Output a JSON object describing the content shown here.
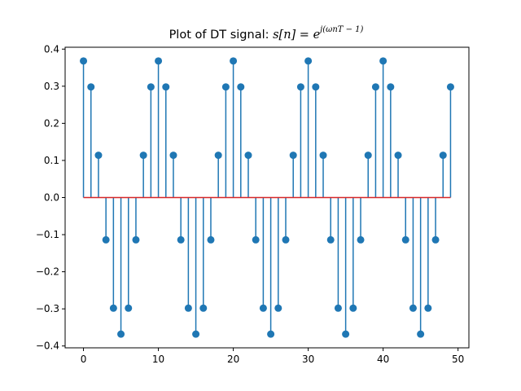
{
  "chart_data": {
    "type": "stem",
    "title": {
      "prefix": "Plot of DT signal: ",
      "formula_base": "s[n] = e",
      "formula_exponent": "j(ωnT − 1)"
    },
    "xlabel": "",
    "ylabel": "",
    "xlim": [
      -2.45,
      51.45
    ],
    "ylim": [
      -0.405,
      0.405
    ],
    "xticks": [
      0,
      10,
      20,
      30,
      40,
      50
    ],
    "yticks": [
      -0.4,
      -0.3,
      -0.2,
      -0.1,
      0.0,
      0.1,
      0.2,
      0.3,
      0.4
    ],
    "ytick_labels": [
      "−0.4",
      "−0.3",
      "−0.2",
      "−0.1",
      "0.0",
      "0.1",
      "0.2",
      "0.3",
      "0.4"
    ],
    "baseline": 0,
    "grid": false,
    "colors": {
      "stem": "#1f77b4",
      "marker": "#1f77b4",
      "baseline": "#d62728",
      "axes": "#000000"
    },
    "series": [
      {
        "x": [
          0,
          1,
          2,
          3,
          4,
          5,
          6,
          7,
          8,
          9,
          10,
          11,
          12,
          13,
          14,
          15,
          16,
          17,
          18,
          19,
          20,
          21,
          22,
          23,
          24,
          25,
          26,
          27,
          28,
          29,
          30,
          31,
          32,
          33,
          34,
          35,
          36,
          37,
          38,
          39,
          40,
          41,
          42,
          43,
          44,
          45,
          46,
          47,
          48,
          49
        ],
        "y": [
          0.368,
          0.298,
          0.114,
          -0.114,
          -0.298,
          -0.368,
          -0.298,
          -0.114,
          0.114,
          0.298,
          0.368,
          0.298,
          0.114,
          -0.114,
          -0.298,
          -0.368,
          -0.298,
          -0.114,
          0.114,
          0.298,
          0.368,
          0.298,
          0.114,
          -0.114,
          -0.298,
          -0.368,
          -0.298,
          -0.114,
          0.114,
          0.298,
          0.368,
          0.298,
          0.114,
          -0.114,
          -0.298,
          -0.368,
          -0.298,
          -0.114,
          0.114,
          0.298,
          0.368,
          0.298,
          0.114,
          -0.114,
          -0.298,
          -0.368,
          -0.298,
          -0.114,
          0.114,
          0.298
        ]
      }
    ]
  }
}
